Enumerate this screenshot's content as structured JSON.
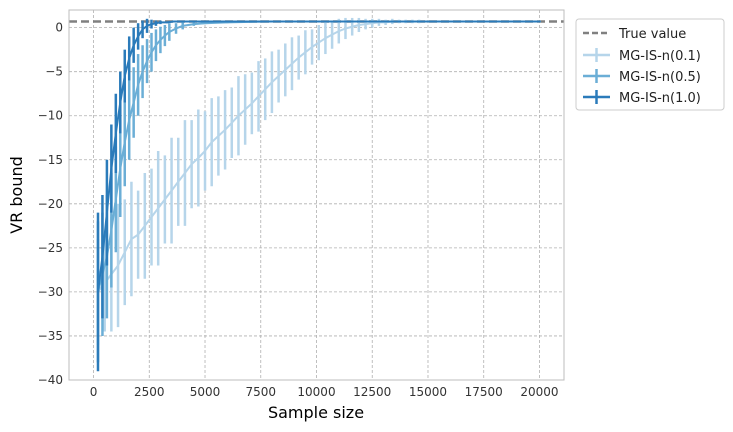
{
  "chart_data": {
    "type": "line",
    "xlabel": "Sample size",
    "ylabel": "VR bound",
    "xlim": [
      -1100,
      21100
    ],
    "ylim": [
      -40,
      2
    ],
    "xticks": [
      0,
      2500,
      5000,
      7500,
      10000,
      12500,
      15000,
      17500,
      20000
    ],
    "yticks": [
      0,
      -5,
      -10,
      -15,
      -20,
      -25,
      -30,
      -35,
      -40
    ],
    "grid": true,
    "legend_position": "outside-top-right",
    "reference_line": {
      "name": "True value",
      "y": 0.7,
      "color": "#808080",
      "style": "dashed"
    },
    "series": [
      {
        "name": "MG-IS-n(0.1)",
        "color": "#b6d5ea",
        "errorbars": true,
        "x": [
          200,
          500,
          800,
          1100,
          1400,
          1700,
          2000,
          2300,
          2600,
          2900,
          3200,
          3500,
          3800,
          4100,
          4400,
          4700,
          5000,
          5300,
          5600,
          5900,
          6200,
          6500,
          6800,
          7100,
          7400,
          7700,
          8000,
          8300,
          8600,
          8900,
          9200,
          9500,
          9800,
          10100,
          10400,
          10700,
          11000,
          11300,
          11600,
          11900,
          12200,
          12500,
          12800,
          13100,
          13400,
          13700,
          14000,
          14300,
          14600,
          14900,
          15200,
          15500,
          15800,
          16100,
          16400,
          16700,
          17000,
          17300,
          17600,
          17900,
          18200,
          18500,
          18800,
          19100,
          19400,
          19700,
          20000
        ],
        "y": [
          -30.0,
          -29.0,
          -28.0,
          -27.0,
          -25.5,
          -24.0,
          -23.5,
          -22.5,
          -21.5,
          -20.5,
          -19.5,
          -18.5,
          -17.5,
          -16.5,
          -15.5,
          -14.8,
          -14.0,
          -13.0,
          -12.3,
          -11.6,
          -10.8,
          -10.0,
          -9.3,
          -8.6,
          -7.8,
          -7.0,
          -6.2,
          -5.5,
          -4.8,
          -4.1,
          -3.4,
          -2.8,
          -2.2,
          -1.7,
          -1.2,
          -0.8,
          -0.4,
          -0.1,
          0.1,
          0.3,
          0.4,
          0.5,
          0.6,
          0.6,
          0.7,
          0.7,
          0.7,
          0.7,
          0.7,
          0.7,
          0.7,
          0.7,
          0.7,
          0.7,
          0.7,
          0.7,
          0.7,
          0.7,
          0.7,
          0.7,
          0.7,
          0.7,
          0.7,
          0.7,
          0.7,
          0.7,
          0.7
        ],
        "err": [
          6.0,
          5.5,
          6.5,
          7.0,
          6.0,
          6.5,
          5.0,
          6.0,
          5.5,
          6.5,
          5.0,
          6.0,
          5.0,
          6.0,
          5.0,
          5.5,
          4.5,
          5.0,
          4.5,
          4.5,
          4.0,
          4.5,
          4.0,
          3.5,
          4.0,
          3.5,
          3.5,
          3.0,
          3.0,
          3.0,
          2.5,
          2.5,
          2.0,
          2.0,
          1.8,
          1.6,
          1.4,
          1.2,
          1.0,
          0.8,
          0.6,
          0.5,
          0.4,
          0.3,
          0.3,
          0.2,
          0.2,
          0.2,
          0.2,
          0.1,
          0.1,
          0.1,
          0.1,
          0.1,
          0.1,
          0.1,
          0.1,
          0.1,
          0.1,
          0.1,
          0.1,
          0.1,
          0.1,
          0.1,
          0.1,
          0.1,
          0.1
        ]
      },
      {
        "name": "MG-IS-n(0.5)",
        "color": "#6baed6",
        "errorbars": true,
        "x": [
          200,
          400,
          600,
          800,
          1000,
          1200,
          1400,
          1600,
          1800,
          2000,
          2200,
          2400,
          2600,
          2800,
          3000,
          3200,
          3400,
          3700,
          4000,
          4500,
          5000,
          6000,
          8000,
          10000,
          12000,
          14000,
          16000,
          18000,
          20000
        ],
        "y": [
          -30.0,
          -28.0,
          -26.0,
          -23.0,
          -19.5,
          -16.0,
          -13.0,
          -10.5,
          -8.5,
          -6.5,
          -5.0,
          -3.8,
          -2.8,
          -2.0,
          -1.4,
          -0.9,
          -0.5,
          -0.1,
          0.2,
          0.4,
          0.5,
          0.6,
          0.7,
          0.7,
          0.7,
          0.7,
          0.7,
          0.7,
          0.7
        ],
        "err": [
          8.0,
          7.0,
          7.0,
          6.5,
          6.0,
          5.5,
          5.0,
          4.5,
          4.0,
          3.5,
          3.0,
          2.5,
          2.2,
          1.8,
          1.5,
          1.2,
          1.0,
          0.6,
          0.4,
          0.2,
          0.1,
          0.1,
          0.1,
          0.1,
          0.1,
          0.1,
          0.1,
          0.1,
          0.1
        ]
      },
      {
        "name": "MG-IS-n(1.0)",
        "color": "#2b7bba",
        "errorbars": true,
        "x": [
          200,
          400,
          600,
          800,
          1000,
          1200,
          1400,
          1600,
          1800,
          2000,
          2200,
          2400,
          2600,
          2800,
          3000,
          3300,
          3600,
          4000,
          4500,
          5000,
          6000,
          8000,
          10000,
          12000,
          14000,
          16000,
          18000,
          20000
        ],
        "y": [
          -30.0,
          -26.0,
          -21.0,
          -16.0,
          -12.0,
          -8.5,
          -5.5,
          -3.5,
          -2.0,
          -1.0,
          -0.2,
          0.2,
          0.4,
          0.5,
          0.6,
          0.6,
          0.7,
          0.7,
          0.7,
          0.7,
          0.7,
          0.7,
          0.7,
          0.7,
          0.7,
          0.7,
          0.7,
          0.7
        ],
        "err": [
          9.0,
          7.0,
          6.0,
          5.0,
          4.5,
          3.5,
          3.0,
          2.5,
          2.0,
          1.5,
          1.0,
          0.8,
          0.5,
          0.3,
          0.2,
          0.1,
          0.1,
          0.1,
          0.1,
          0.1,
          0.1,
          0.1,
          0.1,
          0.1,
          0.1,
          0.1,
          0.1,
          0.1
        ]
      }
    ]
  }
}
